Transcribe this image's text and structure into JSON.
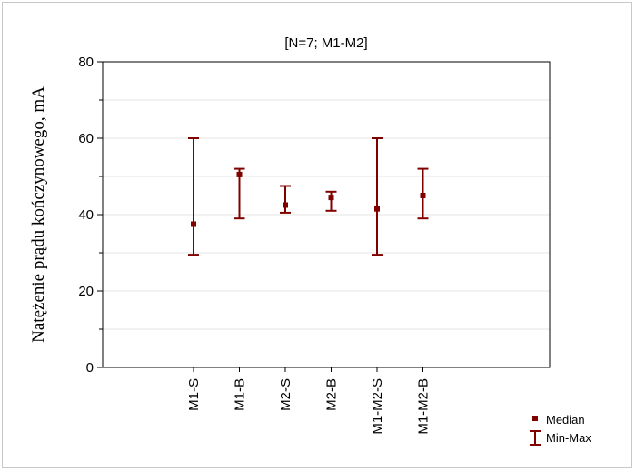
{
  "chart_data": {
    "type": "errorbar",
    "title": "[N=7; M1-M2]",
    "ylabel": "Natężenie prądu kończynowego, mA",
    "xlabel": "",
    "ylim": [
      0,
      80
    ],
    "yticks": [
      0,
      20,
      40,
      60,
      80
    ],
    "grid": true,
    "categories": [
      "M1-S",
      "M1-B",
      "M2-S",
      "M2-B",
      "M1-M2-S",
      "M1-M2-B"
    ],
    "median": [
      37.5,
      50.5,
      42.5,
      44.5,
      41.5,
      45
    ],
    "min": [
      29.5,
      39,
      40.5,
      41,
      29.5,
      39
    ],
    "max": [
      60,
      52,
      47.5,
      46,
      60,
      52
    ],
    "legend": {
      "position": "bottom-right",
      "entries": [
        "Median",
        "Min-Max"
      ]
    },
    "color": "#800000"
  }
}
